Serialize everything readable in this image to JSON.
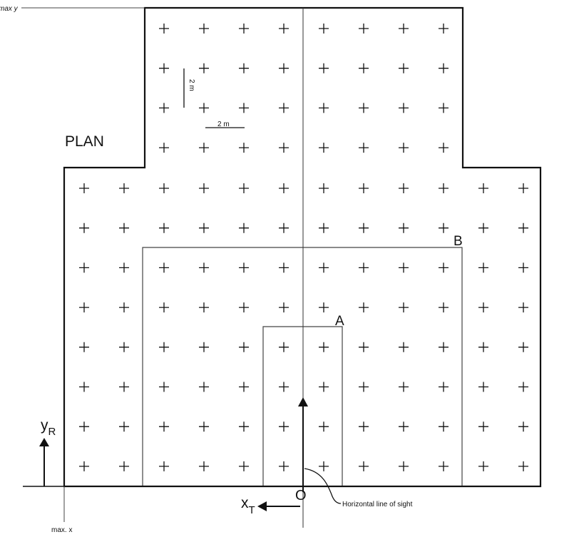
{
  "labels": {
    "plan": "PLAN",
    "max_y": "max y",
    "max_x": "max. x",
    "origin": "O",
    "line_of_sight": "Horizontal line of sight",
    "region_a": "A",
    "region_b": "B",
    "scale_vertical": "2 m",
    "scale_horizontal": "2 m",
    "axis_y_main": "y",
    "axis_y_sub": "R",
    "axis_x_main": "x",
    "axis_x_sub": "T"
  },
  "grid": {
    "upper_block": {
      "columns": 8,
      "rows": 4
    },
    "lower_block": {
      "columns": 12,
      "rows": 8
    }
  }
}
